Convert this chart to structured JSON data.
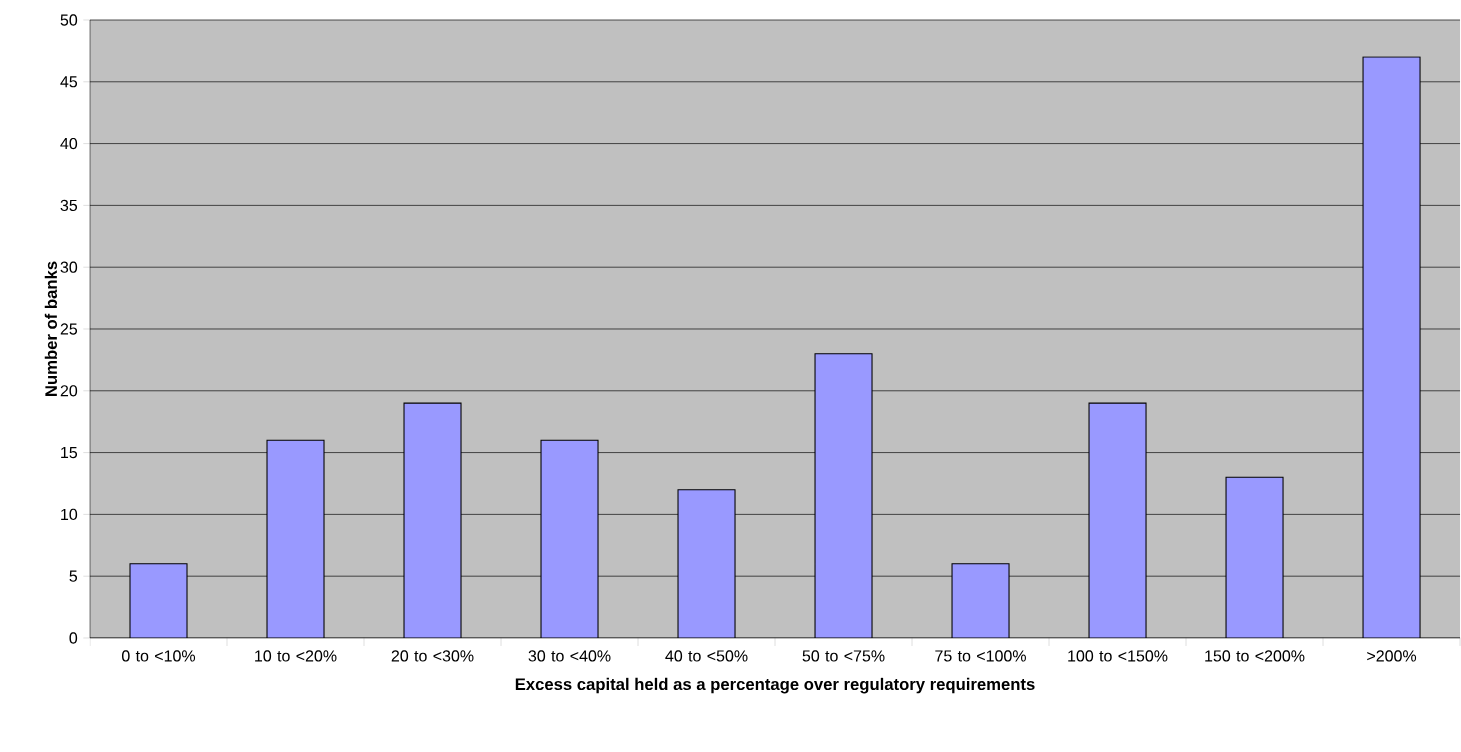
{
  "chart_data": {
    "type": "bar",
    "xlabel": "Excess capital held as a percentage over regulatory requirements",
    "ylabel": "Number of banks",
    "categories": [
      "0 to <10%",
      "10 to <20%",
      "20 to <30%",
      "30 to <40%",
      "40 to <50%",
      "50 to <75%",
      "75 to <100%",
      "100 to <150%",
      "150 to <200%",
      ">200%"
    ],
    "values": [
      6,
      16,
      19,
      16,
      12,
      23,
      6,
      19,
      13,
      47
    ],
    "color": "#9999ff",
    "ylim": [
      0,
      50
    ],
    "yticks": [
      0,
      5,
      10,
      15,
      20,
      25,
      30,
      35,
      40,
      45,
      50
    ],
    "grid": "y"
  }
}
